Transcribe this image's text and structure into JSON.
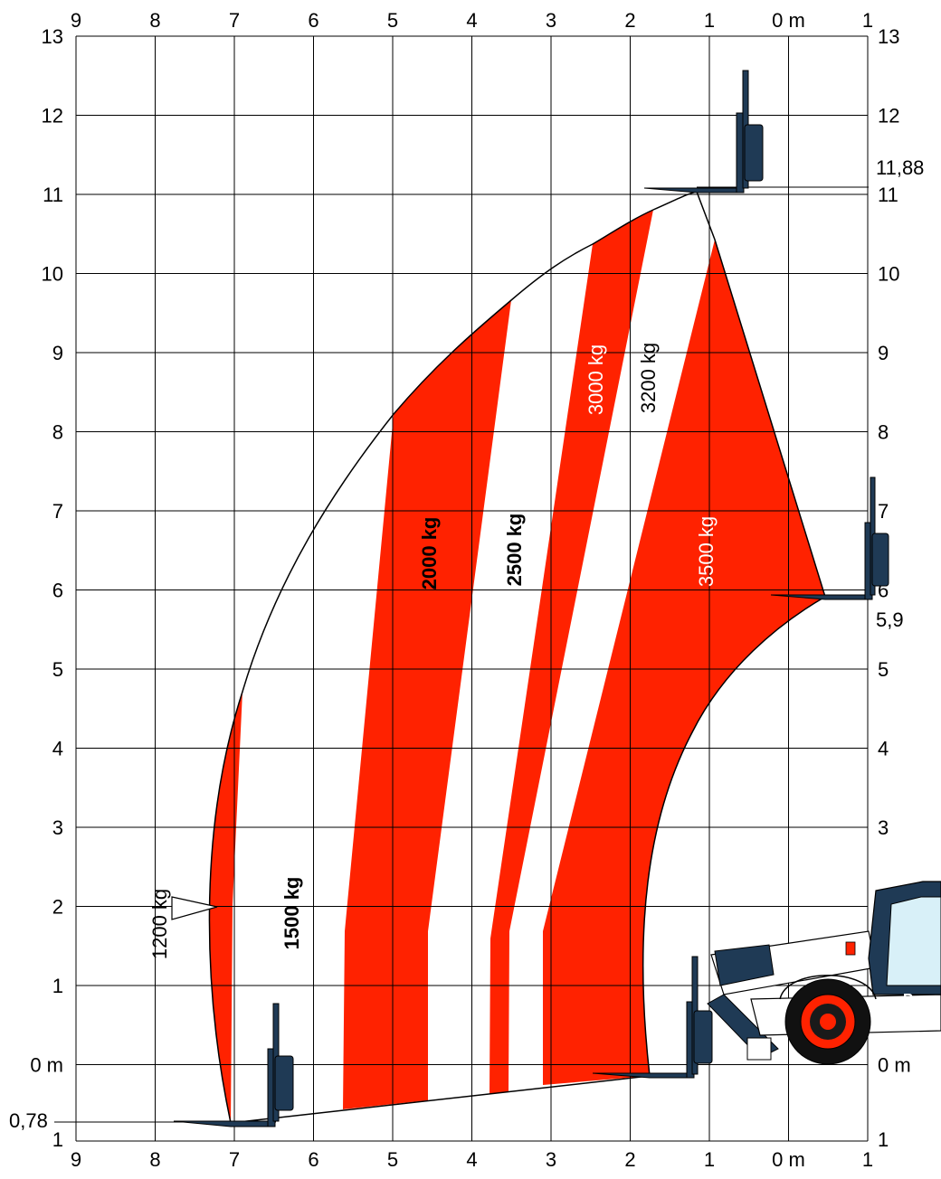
{
  "colors": {
    "red": "#ff2200",
    "white": "#ffffff",
    "grid": "#000000",
    "machine": "#1f3a55",
    "text_light": "#ffffff",
    "text_dark": "#000000"
  },
  "axes": {
    "top_ticks": [
      "9",
      "8",
      "7",
      "6",
      "5",
      "4",
      "3",
      "2",
      "1",
      "0 m",
      "1"
    ],
    "bottom_ticks": [
      "9",
      "8",
      "7",
      "6",
      "5",
      "4",
      "3",
      "2",
      "1",
      "0 m",
      "1"
    ],
    "left_ticks": [
      "13",
      "12",
      "11",
      "10",
      "9",
      "8",
      "7",
      "6",
      "5",
      "4",
      "3",
      "2",
      "1",
      "0 m",
      "1"
    ],
    "right_ticks": [
      "13",
      "12",
      "11",
      "10",
      "9",
      "8",
      "7",
      "6",
      "5",
      "4",
      "3",
      "2",
      "1",
      "0 m",
      "1"
    ],
    "extra_left": "0,78",
    "extra_right_high": "11,88",
    "extra_right_mid": "5,9"
  },
  "zones": [
    {
      "name": "1200 kg",
      "label": "1200 kg",
      "color": "red"
    },
    {
      "name": "1500 kg",
      "label": "1500 kg",
      "color": "white"
    },
    {
      "name": "2000 kg",
      "label": "2000 kg",
      "color": "red"
    },
    {
      "name": "2500 kg",
      "label": "2500 kg",
      "color": "white"
    },
    {
      "name": "3000 kg",
      "label": "3000 kg",
      "color": "red"
    },
    {
      "name": "3200 kg",
      "label": "3200 kg",
      "color": "white"
    },
    {
      "name": "3500 kg",
      "label": "3500 kg",
      "color": "red"
    }
  ],
  "machine": {
    "brand_fragment": "B"
  }
}
